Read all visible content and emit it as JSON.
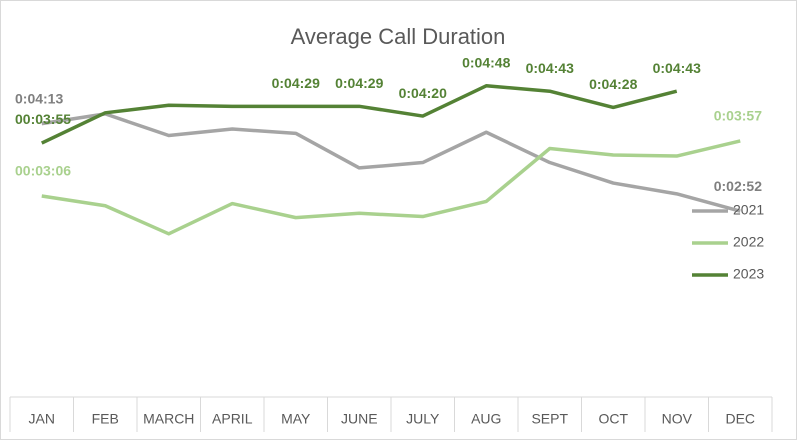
{
  "chart_data": {
    "type": "line",
    "title": "Average Call Duration",
    "categories": [
      "JAN",
      "FEB",
      "MARCH",
      "APRIL",
      "MAY",
      "JUNE",
      "JULY",
      "AUG",
      "SEPT",
      "OCT",
      "NOV",
      "DEC"
    ],
    "ylim": [
      0,
      360
    ],
    "series": [
      {
        "name": "2021",
        "color": "#a5a5a5",
        "values": [
          253,
          262,
          242,
          248,
          244,
          212,
          217,
          245,
          217,
          198,
          188,
          172
        ],
        "value_labels": [
          "0:04:13",
          null,
          null,
          null,
          null,
          null,
          null,
          null,
          null,
          null,
          null,
          "0:02:52"
        ]
      },
      {
        "name": "2022",
        "color": "#a9d18e",
        "values": [
          186,
          177,
          151,
          179,
          166,
          170,
          167,
          181,
          230,
          224,
          223,
          237
        ],
        "value_labels": [
          "00:03:06",
          null,
          null,
          null,
          null,
          null,
          null,
          null,
          null,
          null,
          null,
          "0:03:57"
        ]
      },
      {
        "name": "2023",
        "color": "#548235",
        "values": [
          235,
          263,
          270,
          269,
          269,
          269,
          260,
          288,
          283,
          268,
          283,
          null
        ],
        "value_labels": [
          "00:03:55",
          null,
          null,
          null,
          "0:04:29",
          "0:04:29",
          "0:04:20",
          "0:04:48",
          "0:04:43",
          "0:04:28",
          "0:04:43",
          null
        ]
      }
    ]
  }
}
